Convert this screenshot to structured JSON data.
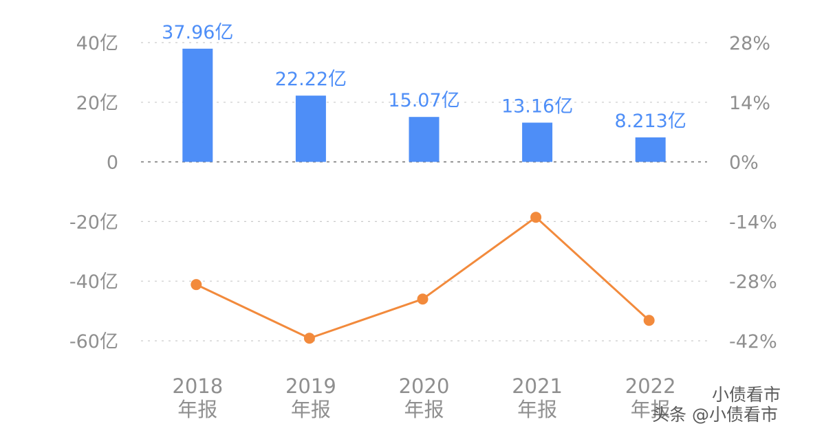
{
  "chart_data": {
    "type": "bar",
    "categories": [
      "2018\n年报",
      "2019\n年报",
      "2020\n年报",
      "2021\n年报",
      "2022\n年报"
    ],
    "series": [
      {
        "type": "bar",
        "axis": "left",
        "values": [
          37.96,
          22.22,
          15.07,
          13.16,
          8.213
        ],
        "data_labels": [
          "37.96亿",
          "22.22亿",
          "15.07亿",
          "13.16亿",
          "8.213亿"
        ],
        "color": "#4e8ef7"
      },
      {
        "type": "line",
        "axis": "right",
        "values": [
          -28.8,
          -41.4,
          -32.2,
          -13.0,
          -37.2
        ],
        "color": "#f28a3c"
      }
    ],
    "y_left": {
      "ticks": [
        40,
        20,
        0,
        -20,
        -40,
        -60
      ],
      "tick_labels": [
        "40亿",
        "20亿",
        "0",
        "-20亿",
        "-40亿",
        "-60亿"
      ],
      "ylim": [
        -60,
        40
      ]
    },
    "y_right": {
      "ticks": [
        28,
        14,
        0,
        -14,
        -28,
        -42
      ],
      "tick_labels": [
        "28%",
        "14%",
        "0%",
        "-14%",
        "-28%",
        "-42%"
      ],
      "ylim": [
        -42,
        28
      ]
    },
    "grid": true,
    "label_color": "#4e8ef7",
    "tick_color": "#8f8f8f",
    "grid_color": "#c9c9c9"
  },
  "watermark": {
    "line1": "小债看市",
    "line2": "头条 @小债看市"
  }
}
